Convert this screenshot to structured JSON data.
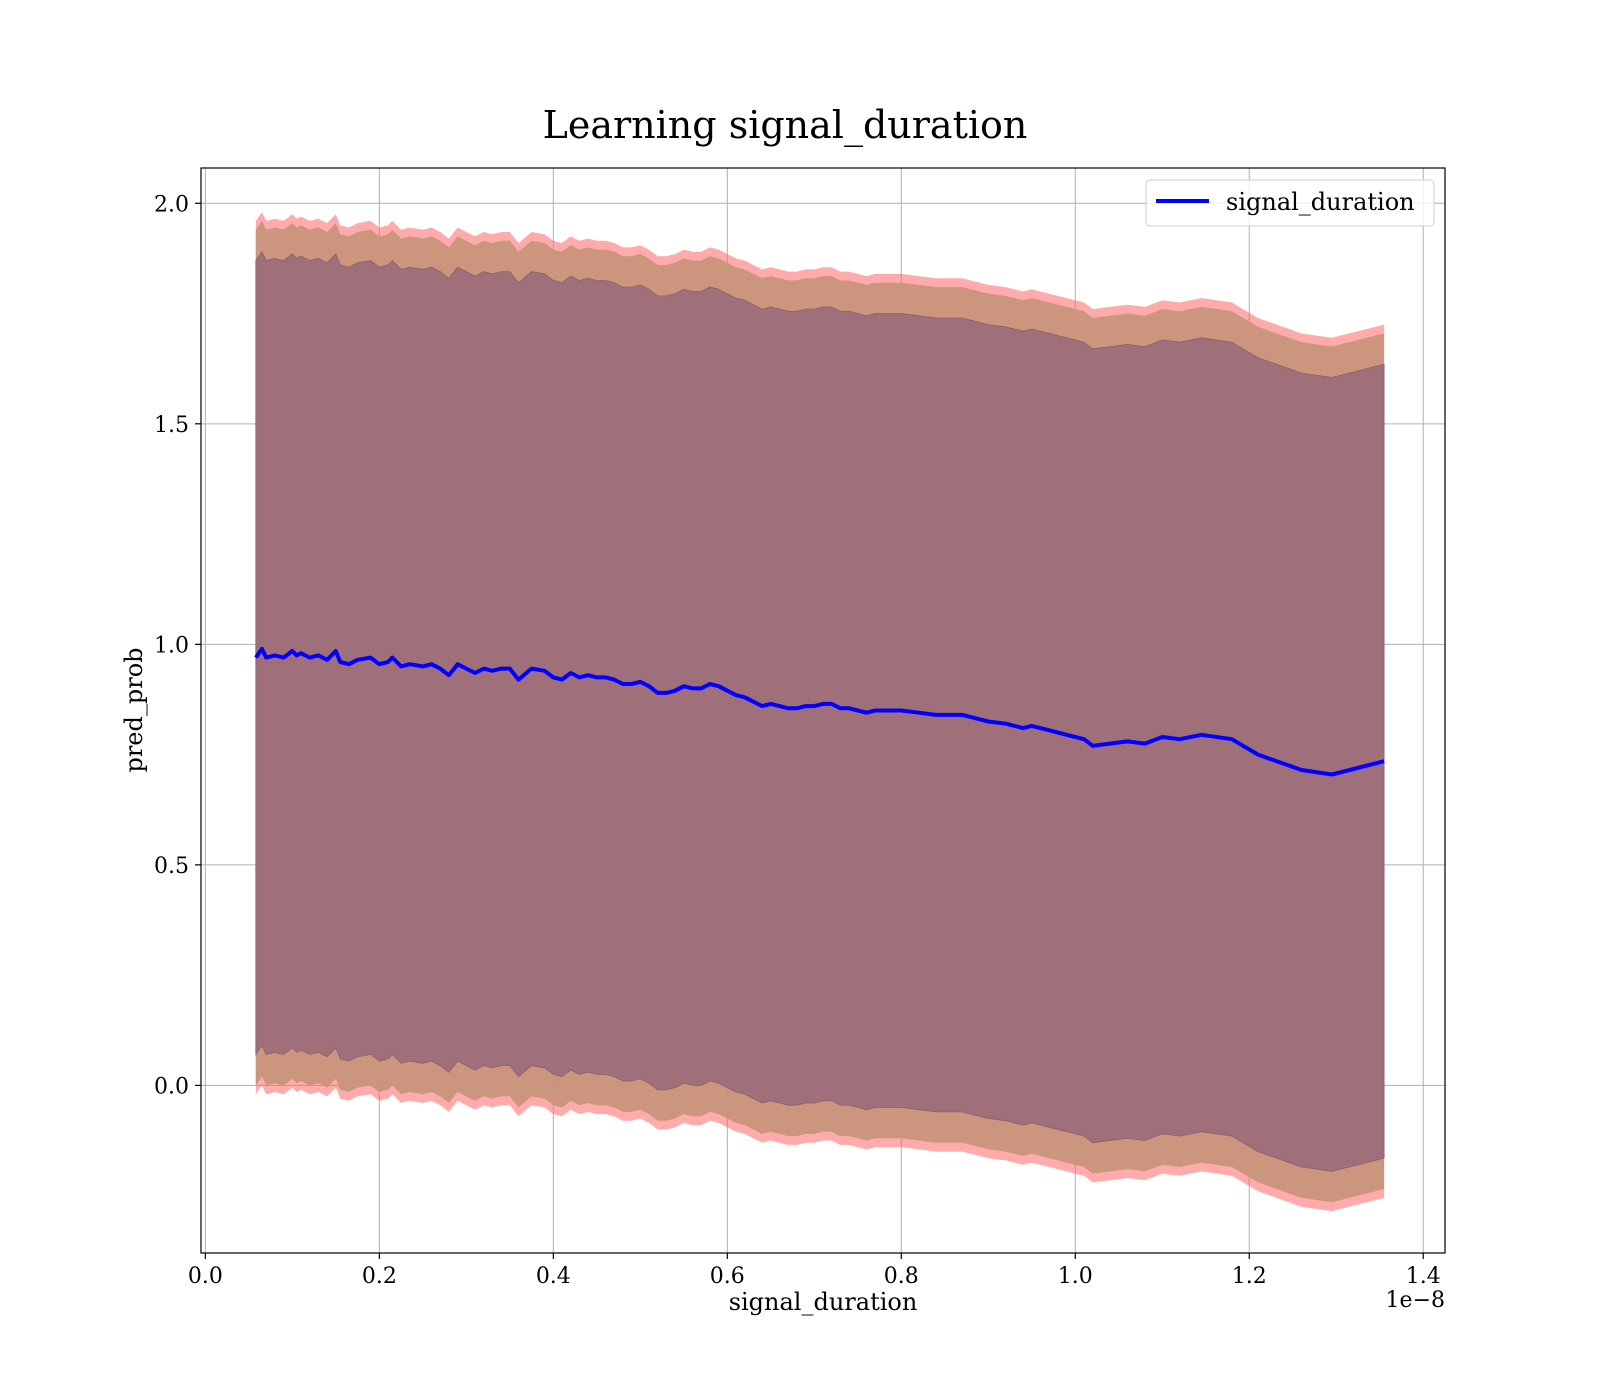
{
  "chart_data": {
    "type": "line",
    "title": "Learning signal_duration",
    "xlabel": "signal_duration",
    "ylabel": "pred_prob",
    "x_offset_text": "1e−8",
    "xlim": [
      -0.005,
      1.425
    ],
    "ylim": [
      -0.38,
      2.08
    ],
    "x_ticks": [
      0.0,
      0.2,
      0.4,
      0.6,
      0.8,
      1.0,
      1.2,
      1.4
    ],
    "x_tick_labels": [
      "0.0",
      "0.2",
      "0.4",
      "0.6",
      "0.8",
      "1.0",
      "1.2",
      "1.4"
    ],
    "y_ticks": [
      0.0,
      0.5,
      1.0,
      1.5,
      2.0
    ],
    "y_tick_labels": [
      "0.0",
      "0.5",
      "1.0",
      "1.5",
      "2.0"
    ],
    "grid": true,
    "legend": {
      "position": "top-right",
      "entries": [
        "signal_duration"
      ]
    },
    "colors": {
      "line": "#0000ff",
      "outer_band": "#ff6666",
      "middle_band": "#c8957a",
      "inner_band": "#a0707a"
    },
    "series": [
      {
        "name": "signal_duration",
        "x": [
          0.058,
          0.065,
          0.07,
          0.08,
          0.09,
          0.1,
          0.105,
          0.11,
          0.12,
          0.13,
          0.14,
          0.15,
          0.155,
          0.165,
          0.175,
          0.19,
          0.2,
          0.21,
          0.215,
          0.225,
          0.235,
          0.25,
          0.26,
          0.27,
          0.28,
          0.29,
          0.3,
          0.31,
          0.32,
          0.33,
          0.34,
          0.35,
          0.36,
          0.375,
          0.39,
          0.4,
          0.41,
          0.42,
          0.43,
          0.44,
          0.45,
          0.46,
          0.47,
          0.48,
          0.49,
          0.5,
          0.51,
          0.52,
          0.53,
          0.54,
          0.55,
          0.56,
          0.57,
          0.58,
          0.59,
          0.6,
          0.61,
          0.62,
          0.63,
          0.64,
          0.65,
          0.66,
          0.67,
          0.68,
          0.69,
          0.7,
          0.71,
          0.72,
          0.73,
          0.74,
          0.75,
          0.76,
          0.77,
          0.78,
          0.8,
          0.82,
          0.84,
          0.86,
          0.87,
          0.88,
          0.9,
          0.92,
          0.94,
          0.95,
          0.97,
          0.99,
          1.0,
          1.01,
          1.02,
          1.04,
          1.06,
          1.08,
          1.1,
          1.12,
          1.145,
          1.18,
          1.21,
          1.26,
          1.295,
          1.355
        ],
        "values": [
          0.97,
          0.99,
          0.97,
          0.975,
          0.97,
          0.985,
          0.975,
          0.98,
          0.97,
          0.975,
          0.965,
          0.985,
          0.96,
          0.955,
          0.965,
          0.97,
          0.955,
          0.96,
          0.97,
          0.95,
          0.955,
          0.95,
          0.955,
          0.945,
          0.93,
          0.955,
          0.945,
          0.935,
          0.945,
          0.94,
          0.945,
          0.945,
          0.92,
          0.945,
          0.94,
          0.925,
          0.92,
          0.935,
          0.925,
          0.93,
          0.925,
          0.925,
          0.92,
          0.91,
          0.91,
          0.915,
          0.905,
          0.89,
          0.89,
          0.895,
          0.905,
          0.9,
          0.9,
          0.91,
          0.905,
          0.895,
          0.885,
          0.88,
          0.87,
          0.86,
          0.865,
          0.86,
          0.855,
          0.855,
          0.86,
          0.86,
          0.865,
          0.865,
          0.855,
          0.855,
          0.85,
          0.845,
          0.85,
          0.85,
          0.85,
          0.845,
          0.84,
          0.84,
          0.84,
          0.835,
          0.825,
          0.82,
          0.81,
          0.815,
          0.805,
          0.795,
          0.79,
          0.785,
          0.77,
          0.775,
          0.78,
          0.775,
          0.79,
          0.785,
          0.795,
          0.785,
          0.75,
          0.715,
          0.705,
          0.735
        ],
        "band_inner_halfwidth": 0.9,
        "band_middle_halfwidth": 0.97,
        "band_outer_halfwidth": 0.99
      }
    ]
  }
}
